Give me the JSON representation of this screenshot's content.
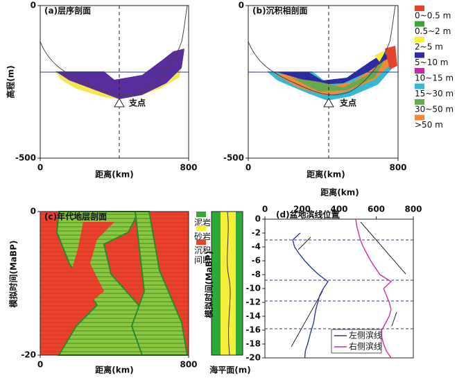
{
  "chart_data": [
    {
      "type": "section",
      "title": "(a)层序剖面",
      "xlabel": "距离(km)",
      "ylabel": "高程(m)",
      "annotation": "支点",
      "xlim": [
        0,
        800
      ],
      "xticks": [
        0,
        800
      ],
      "ylim": [
        -500,
        0
      ],
      "yticks": [
        -500,
        0
      ]
    },
    {
      "type": "section",
      "title": "(b)沉积相剖面",
      "xlabel": "距离(km)",
      "annotation": "支点",
      "xlim": [
        0,
        800
      ],
      "xticks": [
        0,
        800
      ],
      "ylim": [
        -500,
        0
      ],
      "yticks": [
        -500,
        0
      ],
      "legend": [
        {
          "name": "0~0.5 m",
          "color": "#e8412c"
        },
        {
          "name": "0.5~2 m",
          "color": "#3aa535"
        },
        {
          "name": "2~5 m",
          "color": "#f5ee3a"
        },
        {
          "name": "5~10 m",
          "color": "#2e2aa0"
        },
        {
          "name": "10~15 m",
          "color": "#c02bb0"
        },
        {
          "name": "15~30 m",
          "color": "#36b8d0"
        },
        {
          "name": "30~50 m",
          "color": "#6aa84f"
        },
        {
          "name": ">50 m",
          "color": "#f08a3c"
        }
      ]
    },
    {
      "type": "section",
      "title": "(c)年代地层剖面",
      "xlabel": "距离(km)",
      "ylabel": "模拟时间(MaBP)",
      "xlim": [
        0,
        800
      ],
      "xticks": [
        0,
        800
      ],
      "ylim": [
        -20,
        0
      ],
      "yticks": [
        -20,
        0
      ],
      "legend": [
        {
          "name": "泥岩",
          "color": "#3aa535"
        },
        {
          "name": "砂岩",
          "color": "#f5ee3a"
        },
        {
          "name": "沉积间断",
          "color": "#e8412c"
        }
      ]
    },
    {
      "type": "strip",
      "xlabel": "海平面(m)",
      "ylabel": "模拟时间(MaBP)"
    },
    {
      "type": "line",
      "title": "(d)盆地滨线位置",
      "xlabel": "距离(km)",
      "xlim": [
        0,
        800
      ],
      "xticks": [
        0,
        200,
        400,
        600,
        800
      ],
      "ylim": [
        -20,
        0
      ],
      "yticks": [
        0,
        -2,
        -4,
        -6,
        -8,
        -10,
        -12,
        -14,
        -16,
        -18,
        -20
      ],
      "reference_lines": [
        -3,
        -8.8,
        -11.8,
        -15.8
      ],
      "y": [
        0,
        -1,
        -2,
        -3,
        -4,
        -5,
        -6,
        -7,
        -8,
        -9,
        -10,
        -11,
        -12,
        -13,
        -14,
        -15,
        -16,
        -17,
        -18,
        -19,
        -20
      ],
      "series": [
        {
          "name": "左侧滨线",
          "color": "#2a3a9a",
          "values": [
            null,
            null,
            190,
            150,
            160,
            185,
            215,
            250,
            290,
            340,
            315,
            295,
            285,
            275,
            268,
            262,
            250,
            240,
            230,
            218,
            215
          ]
        },
        {
          "name": "右侧滨线",
          "color": "#d02aa8",
          "values": [
            490,
            495,
            505,
            515,
            530,
            550,
            570,
            595,
            620,
            680,
            640,
            655,
            670,
            680,
            670,
            650,
            630,
            630,
            640,
            655,
            680
          ]
        }
      ]
    }
  ]
}
